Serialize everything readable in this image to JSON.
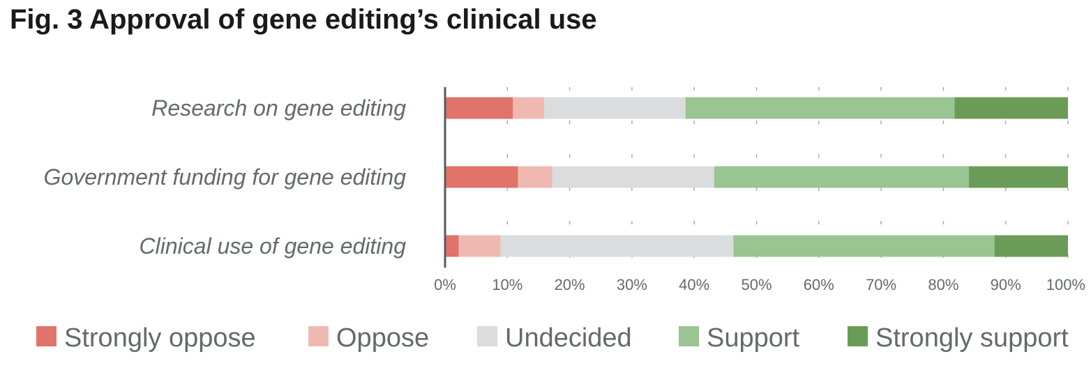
{
  "chart_data": {
    "type": "bar",
    "orientation": "horizontal",
    "stacked": true,
    "title": "Fig. 3 Approval of gene editing’s clinical use",
    "categories": [
      "Research on gene editing",
      "Government funding for gene editing",
      "Clinical use of gene editing"
    ],
    "series": [
      {
        "name": "Strongly oppose",
        "color": "#e0736a",
        "values": [
          10.9,
          11.7,
          2.2
        ]
      },
      {
        "name": "Oppose",
        "color": "#efb9b1",
        "values": [
          5.0,
          5.5,
          6.7
        ]
      },
      {
        "name": "Undecided",
        "color": "#dadcde",
        "values": [
          22.7,
          26.0,
          37.4
        ]
      },
      {
        "name": "Support",
        "color": "#9ac491",
        "values": [
          43.2,
          40.9,
          41.9
        ]
      },
      {
        "name": "Strongly support",
        "color": "#6b9c57",
        "values": [
          18.2,
          15.9,
          11.8
        ]
      }
    ],
    "xlim": [
      0,
      100
    ],
    "x_ticks": [
      "0%",
      "10%",
      "20%",
      "30%",
      "40%",
      "50%",
      "60%",
      "70%",
      "80%",
      "90%",
      "100%"
    ],
    "grid": true,
    "legend_position": "bottom"
  }
}
